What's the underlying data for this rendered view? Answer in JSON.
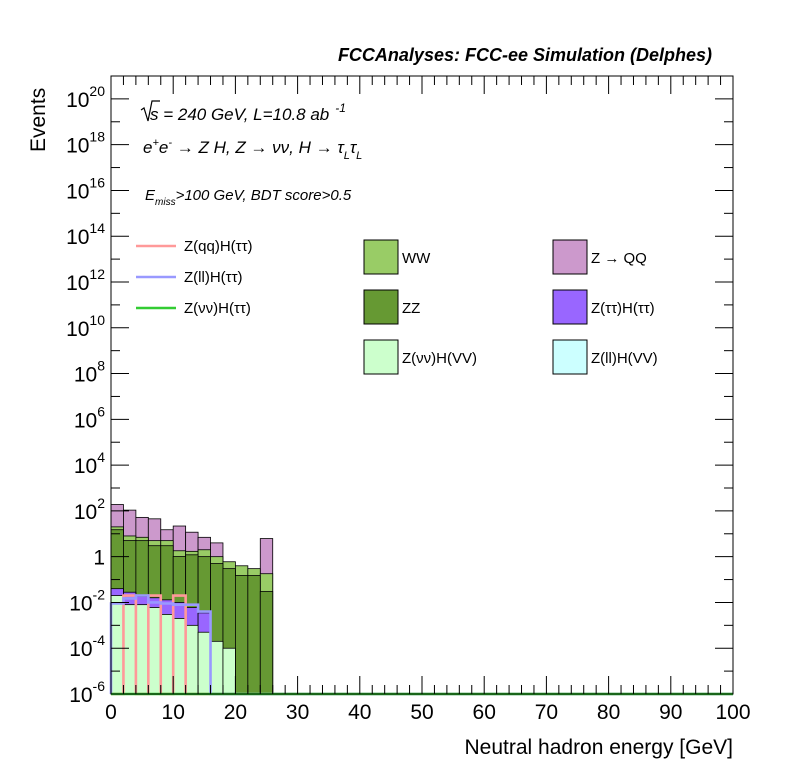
{
  "header": {
    "title": "FCCAnalyses: FCC-ee Simulation (Delphes)"
  },
  "annotations": {
    "energy_prefix": "s",
    "energy_rest": " = 240 GeV, L=10.8 ab",
    "energy_exp": "-1",
    "process_text": "e⁺e⁻ → Z H, Z → νν, H → τₗτₗ",
    "process_a": "e",
    "process_a_sup": "+",
    "process_b": "e",
    "process_b_sup": "-",
    "process_c": " → Z H, Z  → νν, H → τ",
    "process_c_sub": "L",
    "process_d": "τ",
    "process_d_sub": "L",
    "cut_e": "E",
    "cut_sub": "miss",
    "cut_rest": ">100 GeV, BDT score>0.5"
  },
  "chart_data": {
    "type": "bar",
    "title": "FCCAnalyses: FCC-ee Simulation (Delphes)",
    "xlabel": "Neutral hadron energy [GeV]",
    "ylabel": "Events",
    "xlim": [
      0,
      100
    ],
    "ylim": [
      1e-06,
      1e+21
    ],
    "y_log": true,
    "bin_width": 2,
    "x_ticks": [
      "0",
      "10",
      "20",
      "30",
      "40",
      "50",
      "60",
      "70",
      "80",
      "90",
      "100"
    ],
    "y_ticks": [
      {
        "value": 1e+20,
        "base": "10",
        "exp": "20"
      },
      {
        "value": 1e+18,
        "base": "10",
        "exp": "18"
      },
      {
        "value": 1e+16,
        "base": "10",
        "exp": "16"
      },
      {
        "value": 100000000000000.0,
        "base": "10",
        "exp": "14"
      },
      {
        "value": 1000000000000.0,
        "base": "10",
        "exp": "12"
      },
      {
        "value": 10000000000.0,
        "base": "10",
        "exp": "10"
      },
      {
        "value": 100000000.0,
        "base": "10",
        "exp": "8"
      },
      {
        "value": 1000000.0,
        "base": "10",
        "exp": "6"
      },
      {
        "value": 10000.0,
        "base": "10",
        "exp": "4"
      },
      {
        "value": 100,
        "base": "10",
        "exp": "2"
      },
      {
        "value": 1,
        "base": "1",
        "exp": ""
      },
      {
        "value": 0.01,
        "base": "10",
        "exp": "-2"
      },
      {
        "value": 0.0001,
        "base": "10",
        "exp": "-4"
      },
      {
        "value": 1e-06,
        "base": "10",
        "exp": "-6"
      }
    ],
    "stack": [
      {
        "name": "Z(νν)H(VV)",
        "color": "#ccffcc",
        "values": [
          0.02,
          0.008,
          0.008,
          0.006,
          0.003,
          0.002,
          0.001,
          0.0005,
          0.0002,
          0.0001,
          0,
          0,
          0
        ]
      },
      {
        "name": "Z(ττ)H(ττ)",
        "color": "#9966ff",
        "values": [
          0.02,
          0.02,
          0.01,
          0.01,
          0.01,
          0.008,
          0.005,
          0.003,
          0,
          0,
          0,
          0,
          0
        ]
      },
      {
        "name": "ZZ",
        "color": "#669933",
        "values": [
          15,
          5,
          5,
          3,
          3,
          1,
          1.2,
          1,
          0.5,
          0.3,
          0.15,
          0.15,
          0.03
        ]
      },
      {
        "name": "WW",
        "color": "#99cc66",
        "values": [
          5,
          3,
          2,
          2,
          2,
          0.8,
          0.5,
          1,
          0.5,
          0.3,
          0.25,
          0.15,
          0.15
        ]
      },
      {
        "name": "Z → QQ",
        "color": "#cc99cc",
        "values": [
          170,
          100,
          45,
          40,
          10,
          20,
          10,
          5,
          3,
          0,
          0,
          0,
          6
        ]
      }
    ],
    "lines": [
      {
        "name": "Z(qq)H(ττ)",
        "color": "#ff9999",
        "values": [
          0,
          0.02,
          0,
          0.02,
          0,
          0.02,
          0,
          0,
          0,
          0,
          0,
          0,
          0
        ]
      },
      {
        "name": "Z(ll)H(ττ)",
        "color": "#9999ff",
        "values": [
          0.009,
          0.015,
          0.02,
          0.01,
          0.009,
          0.008,
          0.008,
          0.004,
          0,
          0,
          0,
          0,
          0
        ]
      },
      {
        "name": "Z(νν)H(ττ)",
        "color": "#33cc33",
        "values": [
          0,
          0,
          0,
          0,
          0,
          0,
          0,
          0,
          0,
          0,
          0,
          0,
          0
        ]
      }
    ],
    "legend_lines": [
      {
        "name": "Z(qq)H(ττ)",
        "color": "#ff9999"
      },
      {
        "name": "Z(ll)H(ττ)",
        "color": "#9999ff"
      },
      {
        "name": "Z(νν)H(ττ)",
        "color": "#33cc33"
      }
    ],
    "legend_boxes": [
      {
        "name": "WW",
        "color": "#99cc66"
      },
      {
        "name": "Z → QQ",
        "color": "#cc99cc"
      },
      {
        "name": "ZZ",
        "color": "#669933"
      },
      {
        "name": "Z(ττ)H(ττ)",
        "color": "#9966ff"
      },
      {
        "name": "Z(νν)H(VV)",
        "color": "#ccffcc"
      },
      {
        "name": "Z(ll)H(VV)",
        "color": "#ccffff"
      }
    ]
  }
}
